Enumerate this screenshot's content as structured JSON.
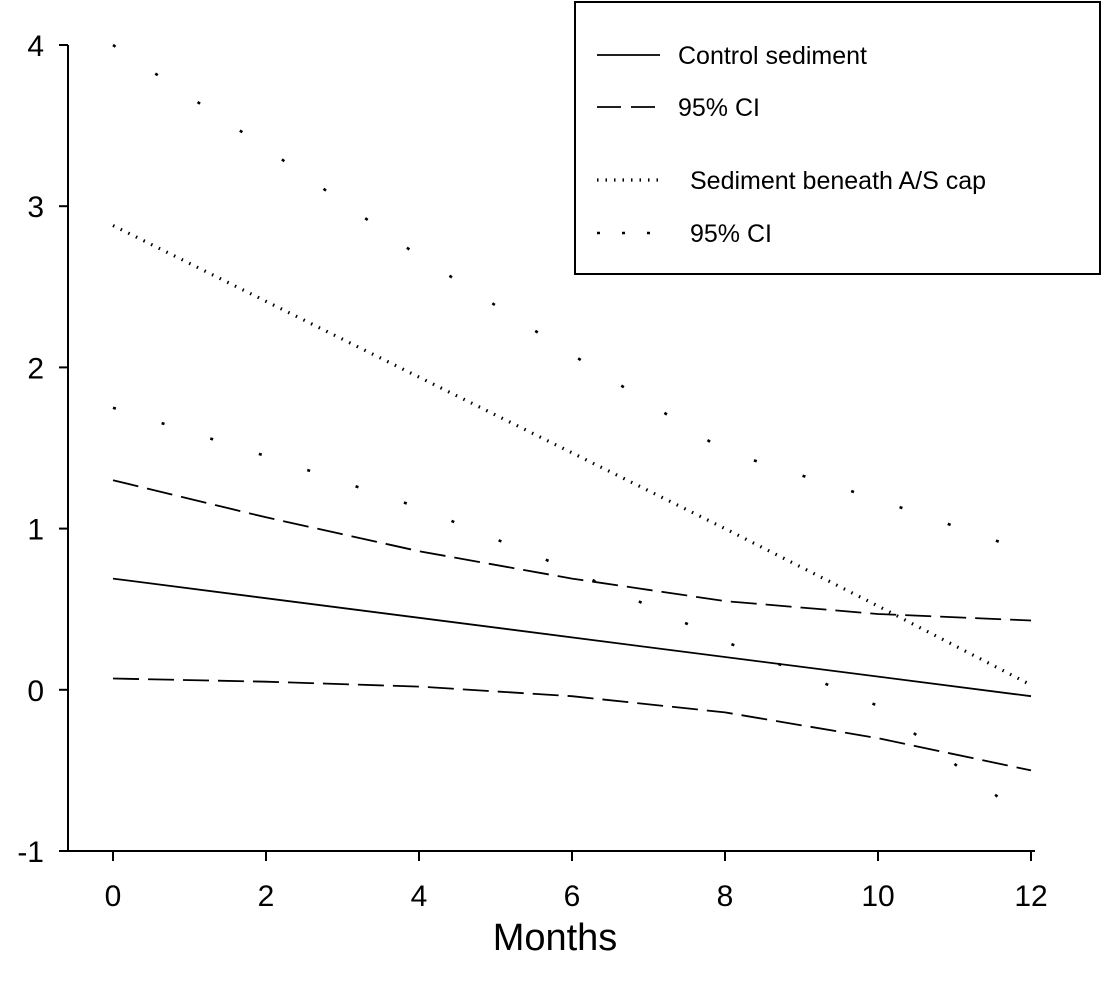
{
  "chart_data": {
    "type": "line",
    "title": "",
    "xlabel": "Months",
    "ylabel": "",
    "xlim": [
      0,
      12
    ],
    "ylim": [
      -1,
      4
    ],
    "x_ticks": [
      "0",
      "2",
      "4",
      "6",
      "8",
      "10",
      "12"
    ],
    "y_ticks": [
      "-1",
      "0",
      "1",
      "2",
      "3",
      "4"
    ],
    "grid": false,
    "legend_position": "top-right",
    "series": [
      {
        "name": "Control sediment",
        "style": "solid",
        "x": [
          0,
          12
        ],
        "y": [
          0.69,
          -0.04
        ]
      },
      {
        "name": "95% CI",
        "style": "long-dash",
        "x": [
          0,
          2,
          4,
          6,
          8,
          10,
          12
        ],
        "y": [
          1.3,
          1.07,
          0.86,
          0.69,
          0.55,
          0.47,
          0.43
        ]
      },
      {
        "name": "",
        "style": "long-dash",
        "x": [
          0,
          2,
          4,
          6,
          8,
          10,
          12
        ],
        "y": [
          0.07,
          0.05,
          0.02,
          -0.04,
          -0.14,
          -0.3,
          -0.5
        ]
      },
      {
        "name": "Sediment beneath A/S cap",
        "style": "dotted",
        "x": [
          0,
          2,
          4,
          6,
          8,
          10,
          12
        ],
        "y": [
          2.88,
          2.41,
          1.94,
          1.47,
          1.0,
          0.52,
          0.03
        ]
      },
      {
        "name": "95% CI",
        "style": "dash-dot",
        "x": [
          0,
          2,
          4,
          6,
          8,
          10,
          12
        ],
        "y": [
          4.0,
          3.36,
          2.69,
          2.08,
          1.48,
          1.18,
          0.85
        ]
      },
      {
        "name": "",
        "style": "dash-dot",
        "x": [
          0,
          2,
          4,
          6,
          8,
          10,
          12
        ],
        "y": [
          1.75,
          1.45,
          1.13,
          0.74,
          0.3,
          -0.1,
          -0.82
        ]
      }
    ],
    "legend": [
      {
        "label": "Control sediment",
        "style": "solid"
      },
      {
        "label": "95% CI",
        "style": "long-dash"
      },
      {
        "label": "Sediment beneath A/S cap",
        "style": "dotted"
      },
      {
        "label": "95% CI",
        "style": "dash-dot"
      }
    ]
  }
}
